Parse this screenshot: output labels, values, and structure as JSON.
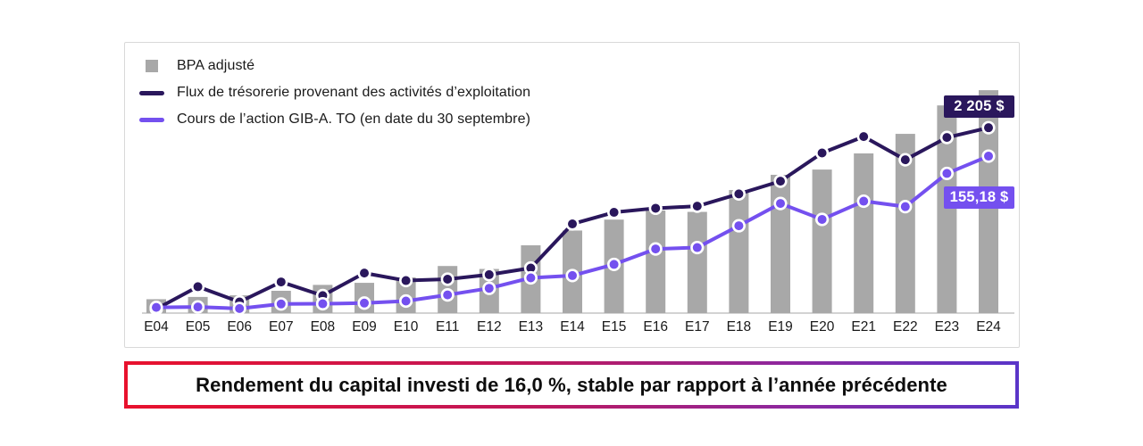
{
  "legend": {
    "items": [
      {
        "label": "BPA adjusté",
        "swatch": "square",
        "color": "#a8a8a8"
      },
      {
        "label": "Flux de trésorerie provenant des activités d’exploitation",
        "swatch": "line",
        "color": "#2a175c"
      },
      {
        "label": "Cours de l’action GIB-A. TO (en date du 30 septembre)",
        "swatch": "line",
        "color": "#7450ef"
      }
    ]
  },
  "chart_data": {
    "type": "combo: bar + 2 line series",
    "title": "",
    "categories": [
      "E04",
      "E05",
      "E06",
      "E07",
      "E08",
      "E09",
      "E10",
      "E11",
      "E12",
      "E13",
      "E14",
      "E15",
      "E16",
      "E17",
      "E18",
      "E19",
      "E20",
      "E21",
      "E22",
      "E23",
      "E24"
    ],
    "grid": false,
    "legend_position": "top-left",
    "axis_note": "No numeric y-axis shown in image; values_pct_of_plot are heights measured as % of plot height; dollar values estimated by scaling to the two labeled end-points.",
    "series": [
      {
        "name": "BPA adjusté",
        "type": "bar",
        "color": "#a8a8a8",
        "values_pct_of_plot": [
          6.1,
          7.1,
          7.8,
          9.8,
          12.4,
          13.3,
          15.7,
          20.7,
          19.4,
          29.8,
          36.3,
          41.1,
          45.1,
          44.5,
          54.1,
          60.8,
          63.1,
          70.2,
          78.8,
          91.3,
          98.0
        ]
      },
      {
        "name": "Flux de trésorerie provenant des activités d’exploitation",
        "type": "line",
        "color": "#2a175c",
        "values_pct_of_plot": [
          1.8,
          11.6,
          4.9,
          13.7,
          7.7,
          17.6,
          14.3,
          14.9,
          16.9,
          19.8,
          39.2,
          44.3,
          46.1,
          47.0,
          52.4,
          58.0,
          70.4,
          77.6,
          67.4,
          77.2,
          81.5
        ],
        "estimated_values_millions": [
          50,
          315,
          135,
          370,
          210,
          475,
          385,
          405,
          455,
          535,
          1060,
          1200,
          1245,
          1270,
          1415,
          1570,
          1905,
          2100,
          1825,
          2090,
          2205
        ],
        "final_value_label": "2 205 $"
      },
      {
        "name": "Cours de l’action GIB-A. TO (en date du 30 septembre)",
        "type": "line",
        "color": "#7450ef",
        "values_pct_of_plot": [
          2.5,
          2.7,
          2.0,
          4.0,
          4.1,
          4.4,
          5.3,
          8.0,
          10.9,
          15.5,
          16.5,
          21.4,
          28.2,
          28.8,
          38.4,
          48.2,
          41.2,
          49.2,
          46.8,
          61.4,
          69.0
        ],
        "estimated_values_dollars": [
          5.6,
          6.1,
          4.5,
          9.0,
          9.2,
          9.9,
          11.9,
          18.0,
          24.5,
          34.9,
          37.1,
          48.1,
          63.4,
          64.8,
          86.4,
          108.4,
          92.7,
          110.7,
          105.3,
          138.1,
          155.18
        ],
        "final_value_label": "155,18 $"
      }
    ],
    "annotations": [
      {
        "text": "2 205 $",
        "series": "Flux de trésorerie provenant des activités d’exploitation",
        "category": "E24"
      },
      {
        "text": "155,18 $",
        "series": "Cours de l’action GIB-A. TO (en date du 30 septembre)",
        "category": "E24"
      }
    ]
  },
  "banner": {
    "text": "Rendement du capital investi de 16,0 %, stable par rapport à l’année précédente"
  },
  "colors": {
    "bar": "#a8a8a8",
    "cashflow_line": "#2a175c",
    "share_line": "#7450ef",
    "axis": "#d3d3d3",
    "card_border": "#d9d9d9",
    "banner_border_left": "#e8112d",
    "banner_border_right": "#5a35c8",
    "badge_text": "#ffffff"
  }
}
